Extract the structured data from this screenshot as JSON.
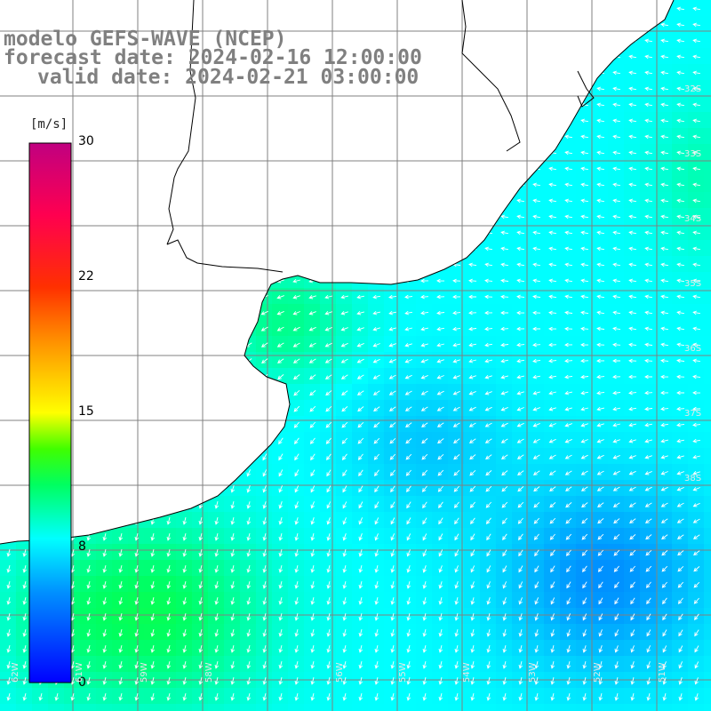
{
  "title": {
    "line1": "modelo GEFS-WAVE (NCEP)",
    "line2": "forecast date: 2024-02-16 12:00:00",
    "line3": "valid date: 2024-02-21 03:00:00"
  },
  "colorbar": {
    "units": "[m/s]",
    "ticks": [
      {
        "label": "30",
        "value": 30
      },
      {
        "label": "22",
        "value": 22
      },
      {
        "label": "15",
        "value": 15
      },
      {
        "label": "8",
        "value": 8
      },
      {
        "label": "0",
        "value": 0
      }
    ],
    "range": [
      0,
      30
    ],
    "colors": [
      "#0000ff",
      "#00a0ff",
      "#00ffff",
      "#00ff00",
      "#ffff00",
      "#ff8000",
      "#ff0000",
      "#ff0080",
      "#c00080"
    ]
  },
  "map": {
    "lat_labels": [
      "32S",
      "33S",
      "34S",
      "35S",
      "36S",
      "37S",
      "38S"
    ],
    "lon_labels": [
      "62W",
      "61W",
      "59W",
      "58W",
      "56W",
      "55W",
      "54W",
      "53W",
      "52W",
      "51W"
    ],
    "field": "wind speed and direction",
    "land_color": "#ffffff",
    "grid_color": "#808080"
  }
}
